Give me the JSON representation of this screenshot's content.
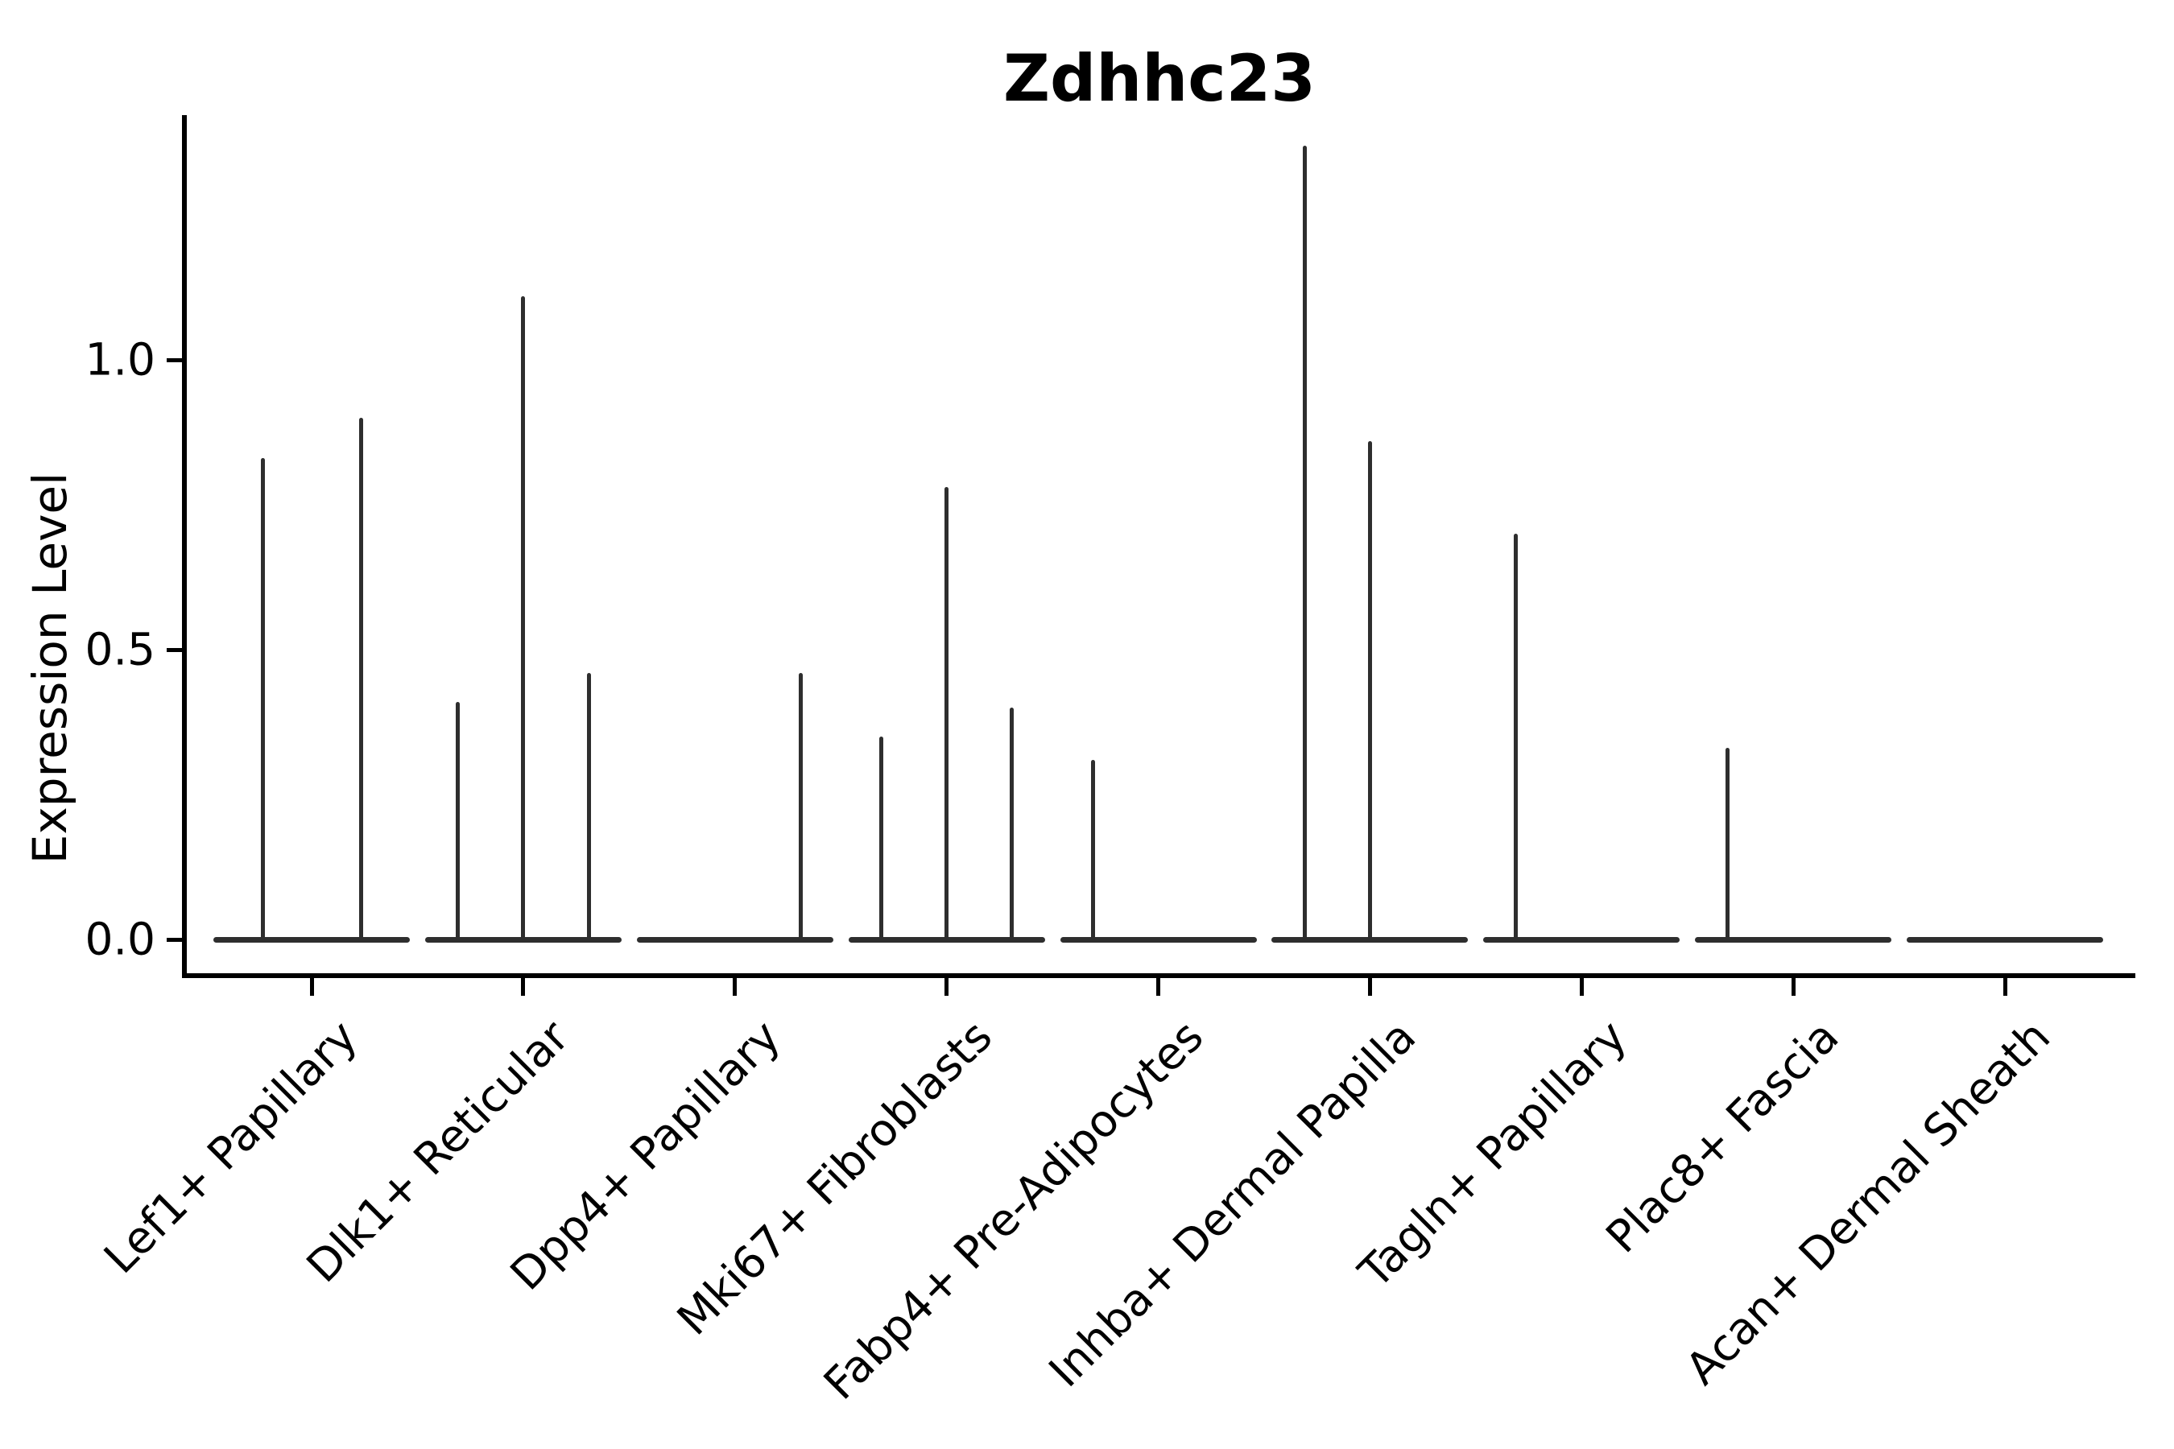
{
  "title": "Zdhhc23",
  "y_axis": {
    "label": "Expression Level",
    "tick_labels": [
      "0.0",
      "0.5",
      "1.0"
    ]
  },
  "chart_data": {
    "type": "violin",
    "title": "Zdhhc23",
    "xlabel": "",
    "ylabel": "Expression Level",
    "yticks": [
      0.0,
      0.5,
      1.0
    ],
    "ylim": [
      -0.07,
      1.48
    ],
    "grid": "off",
    "legend": "none",
    "orientation": "vertical",
    "style": "collapsed violins at zero with narrow density spikes; black open strokes, no fill",
    "categories": [
      "Lef1+ Papillary",
      "Dlk1+ Reticular",
      "Dpp4+ Papillary",
      "Mki67+ Fibroblasts",
      "Fabp4+ Pre-Adipocytes",
      "Inhba+ Dermal Papilla",
      "Tagln+ Papillary",
      "Plac8+ Fascia",
      "Acan+ Dermal Sheath"
    ],
    "series": [
      {
        "category": "Lef1+ Papillary",
        "violin_peak_expression": [
          0.83,
          0.9
        ]
      },
      {
        "category": "Dlk1+ Reticular",
        "violin_peak_expression": [
          0.41,
          1.11,
          0.46
        ]
      },
      {
        "category": "Dpp4+ Papillary",
        "violin_peak_expression": [
          0.0,
          0.0,
          0.46
        ]
      },
      {
        "category": "Mki67+ Fibroblasts",
        "violin_peak_expression": [
          0.35,
          0.78,
          0.4
        ]
      },
      {
        "category": "Fabp4+ Pre-Adipocytes",
        "violin_peak_expression": [
          0.31,
          0.0,
          0.0
        ]
      },
      {
        "category": "Inhba+ Dermal Papilla",
        "violin_peak_expression": [
          1.37,
          0.86,
          0.0
        ]
      },
      {
        "category": "Tagln+ Papillary",
        "violin_peak_expression": [
          0.7,
          0.0,
          0.0
        ]
      },
      {
        "category": "Plac8+ Fascia",
        "violin_peak_expression": [
          0.33,
          0.0,
          0.0
        ]
      },
      {
        "category": "Acan+ Dermal Sheath",
        "violin_peak_expression": [
          0.0,
          0.0,
          0.0
        ]
      }
    ],
    "colors": {
      "violin_stroke": "#2e2e2e",
      "axis": "#000000",
      "text": "#000000",
      "background": "#ffffff"
    }
  }
}
